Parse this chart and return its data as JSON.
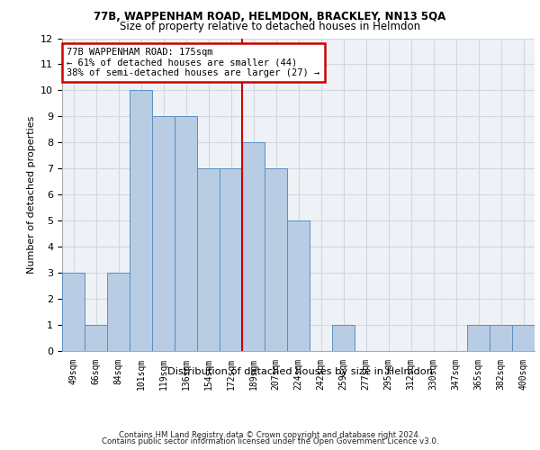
{
  "title1": "77B, WAPPENHAM ROAD, HELMDON, BRACKLEY, NN13 5QA",
  "title2": "Size of property relative to detached houses in Helmdon",
  "xlabel": "Distribution of detached houses by size in Helmdon",
  "ylabel": "Number of detached properties",
  "categories": [
    "49sqm",
    "66sqm",
    "84sqm",
    "101sqm",
    "119sqm",
    "136sqm",
    "154sqm",
    "172sqm",
    "189sqm",
    "207sqm",
    "224sqm",
    "242sqm",
    "259sqm",
    "277sqm",
    "295sqm",
    "312sqm",
    "330sqm",
    "347sqm",
    "365sqm",
    "382sqm",
    "400sqm"
  ],
  "values": [
    3,
    1,
    3,
    10,
    9,
    9,
    7,
    7,
    8,
    7,
    5,
    0,
    1,
    0,
    0,
    0,
    0,
    0,
    1,
    1,
    1
  ],
  "bar_color": "#b8cce4",
  "bar_edge_color": "#5a8fc0",
  "property_line_x": 7.5,
  "annotation_line1": "77B WAPPENHAM ROAD: 175sqm",
  "annotation_line2": "← 61% of detached houses are smaller (44)",
  "annotation_line3": "38% of semi-detached houses are larger (27) →",
  "annotation_box_color": "#ffffff",
  "annotation_box_edge": "#cc0000",
  "vline_color": "#cc0000",
  "ylim": [
    0,
    12
  ],
  "yticks": [
    0,
    1,
    2,
    3,
    4,
    5,
    6,
    7,
    8,
    9,
    10,
    11,
    12
  ],
  "grid_color": "#d0d8e0",
  "bg_color": "#eef2f7",
  "footer_line1": "Contains HM Land Registry data © Crown copyright and database right 2024.",
  "footer_line2": "Contains public sector information licensed under the Open Government Licence v3.0."
}
